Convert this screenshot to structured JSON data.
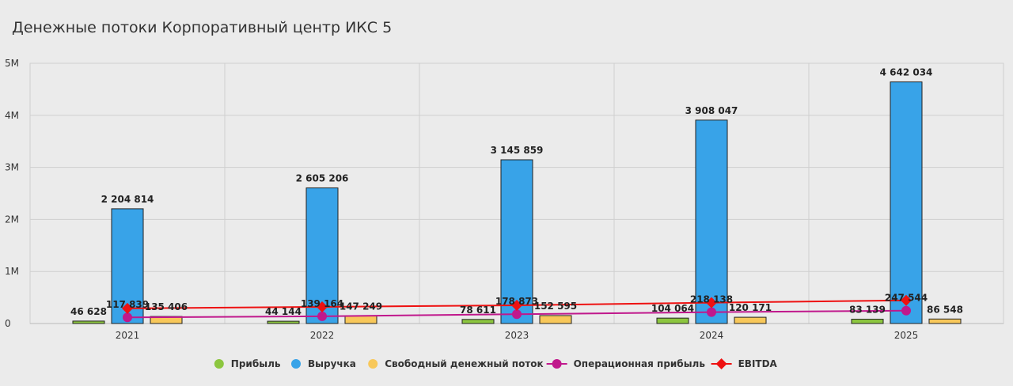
{
  "title": "Денежные потоки Корпоративный центр ИКС 5",
  "chart_data": {
    "type": "bar",
    "title": "Денежные потоки Корпоративный центр ИКС 5",
    "categories": [
      "2021",
      "2022",
      "2023",
      "2024",
      "2025"
    ],
    "ylim": [
      0,
      5000000
    ],
    "yticks": [
      {
        "value": 0,
        "label": "0"
      },
      {
        "value": 1000000,
        "label": "1M"
      },
      {
        "value": 2000000,
        "label": "2M"
      },
      {
        "value": 3000000,
        "label": "3M"
      },
      {
        "value": 4000000,
        "label": "4M"
      },
      {
        "value": 5000000,
        "label": "5M"
      }
    ],
    "grid": true,
    "legend_position": "bottom",
    "bar_series": [
      {
        "name": "Прибыль",
        "color": "#8cc63f",
        "values": [
          46628,
          44144,
          78611,
          104064,
          83139
        ],
        "labels": [
          "46 628",
          "44 144",
          "78 611",
          "104 064",
          "83 139"
        ]
      },
      {
        "name": "Выручка",
        "color": "#38a3e8",
        "values": [
          2204814,
          2605206,
          3145859,
          3908047,
          4642034
        ],
        "labels": [
          "2 204 814",
          "2 605 206",
          "3 145 859",
          "3 908 047",
          "4 642 034"
        ]
      },
      {
        "name": "Свободный денежный поток",
        "color": "#f8c85a",
        "values": [
          135406,
          147249,
          152595,
          120171,
          86548
        ],
        "labels": [
          "135 406",
          "147 249",
          "152 595",
          "120 171",
          "86 548"
        ]
      }
    ],
    "line_series": [
      {
        "name": "Операционная прибыль",
        "color": "#c0188c",
        "marker": "circle",
        "values": [
          117839,
          139164,
          178873,
          218138,
          247544
        ],
        "labels": [
          "117 839",
          "139 164",
          "178 873",
          "218 138",
          "247 544"
        ]
      },
      {
        "name": "EBITDA",
        "color": "#ee1111",
        "marker": "diamond",
        "values": [
          290000,
          320000,
          350000,
          400000,
          445000
        ],
        "labels": []
      }
    ],
    "legend": [
      {
        "name": "Прибыль",
        "color": "#8cc63f",
        "shape": "circle"
      },
      {
        "name": "Выручка",
        "color": "#38a3e8",
        "shape": "circle"
      },
      {
        "name": "Свободный денежный поток",
        "color": "#f8c85a",
        "shape": "circle"
      },
      {
        "name": "Операционная прибыль",
        "color": "#c0188c",
        "shape": "line-circle"
      },
      {
        "name": "EBITDA",
        "color": "#ee1111",
        "shape": "line-diamond"
      }
    ]
  }
}
